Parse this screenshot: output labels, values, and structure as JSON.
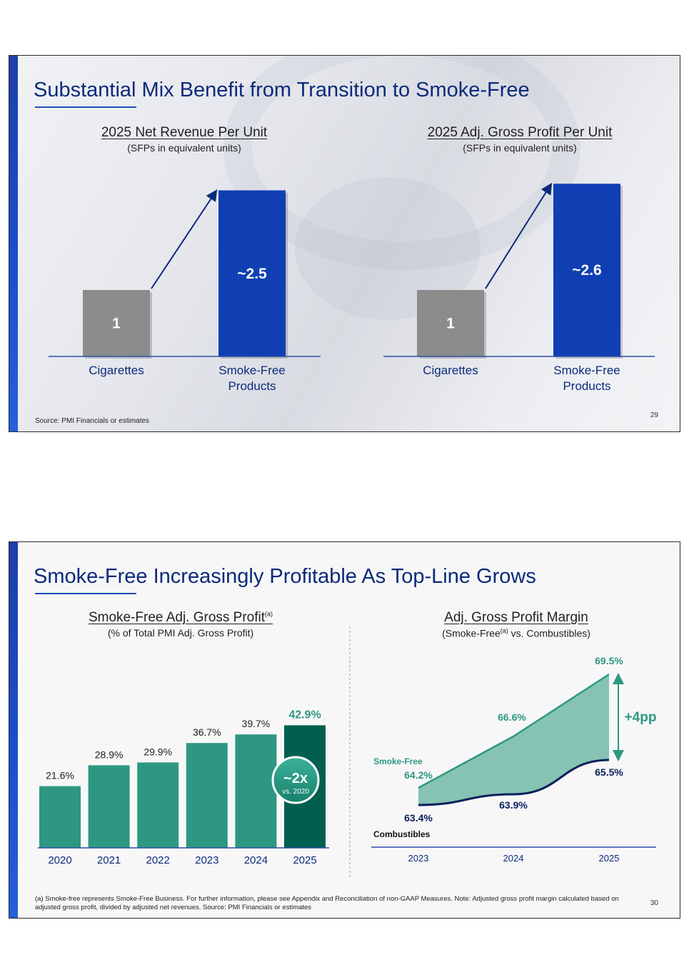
{
  "slide1": {
    "title": "Substantial Mix Benefit from Transition to Smoke-Free",
    "page_number": "29",
    "source": "Source: PMI Financials or estimates",
    "left_chart": {
      "title": "2025 Net Revenue Per Unit",
      "subtitle": "(SFPs in equivalent units)"
    },
    "right_chart": {
      "title": "2025 Adj. Gross Profit Per Unit",
      "subtitle": "(SFPs in equivalent units)"
    }
  },
  "slide2": {
    "title": "Smoke-Free Increasingly Profitable As Top-Line Grows",
    "page_number": "30",
    "left_chart": {
      "title": "Smoke-Free Adj. Gross Profit",
      "title_sup": "(a)",
      "subtitle": "(% of Total PMI Adj. Gross Profit)"
    },
    "right_chart": {
      "title": "Adj. Gross Profit Margin",
      "subtitle_pre": "(Smoke-Free",
      "subtitle_sup": "(a)",
      "subtitle_post": " vs. Combustibles)"
    },
    "badge": {
      "main": "~2x",
      "sub": "vs. 2020"
    },
    "gap_label": "+4pp",
    "series_labels": {
      "smoke_free": "Smoke-Free",
      "combustibles": "Combustibles"
    },
    "footnote": "(a) Smoke-free represents Smoke-Free Business. For further information, please see Appendix and Reconciliation of non-GAAP Measures. Note: Adjusted gross profit margin calculated based on adjusted gross profit, divided by adjusted net revenues. Source: PMI Financials or estimates"
  },
  "colors": {
    "navy": "#0b2a7a",
    "blue_bar": "#0f3fb3",
    "grey_bar": "#8c8c8c",
    "teal": "#2e9782",
    "dark_teal": "#005f4f",
    "teal_fill": "#86c3b3",
    "dark_navy_line": "#0a1f5c"
  },
  "chart_data": [
    {
      "type": "bar",
      "title": "2025 Net Revenue Per Unit",
      "subtitle": "(SFPs in equivalent units)",
      "categories": [
        "Cigarettes",
        "Smoke-Free Products"
      ],
      "values": [
        1,
        2.5
      ],
      "labels": [
        "1",
        "~2.5"
      ],
      "ylim": [
        0,
        3
      ]
    },
    {
      "type": "bar",
      "title": "2025 Adj. Gross Profit Per Unit",
      "subtitle": "(SFPs in equivalent units)",
      "categories": [
        "Cigarettes",
        "Smoke-Free Products"
      ],
      "values": [
        1,
        2.6
      ],
      "labels": [
        "1",
        "~2.6"
      ],
      "ylim": [
        0,
        3
      ]
    },
    {
      "type": "bar",
      "title": "Smoke-Free Adj. Gross Profit",
      "subtitle": "(% of Total PMI Adj. Gross Profit)",
      "categories": [
        "2020",
        "2021",
        "2022",
        "2023",
        "2024",
        "2025"
      ],
      "values": [
        21.6,
        28.9,
        29.9,
        36.7,
        39.7,
        42.9
      ],
      "labels": [
        "21.6%",
        "28.9%",
        "29.9%",
        "36.7%",
        "39.7%",
        "42.9%"
      ],
      "ylim": [
        0,
        50
      ]
    },
    {
      "type": "area",
      "title": "Adj. Gross Profit Margin",
      "subtitle": "(Smoke-Free(a) vs. Combustibles)",
      "x": [
        "2023",
        "2024",
        "2025"
      ],
      "series": [
        {
          "name": "Smoke-Free",
          "values": [
            64.2,
            66.6,
            69.5
          ],
          "labels": [
            "64.2%",
            "66.6%",
            "69.5%"
          ]
        },
        {
          "name": "Combustibles",
          "values": [
            63.4,
            63.9,
            65.5
          ],
          "labels": [
            "63.4%",
            "63.9%",
            "65.5%"
          ]
        }
      ],
      "ylim": [
        62,
        70
      ],
      "annotation": "+4pp"
    }
  ]
}
